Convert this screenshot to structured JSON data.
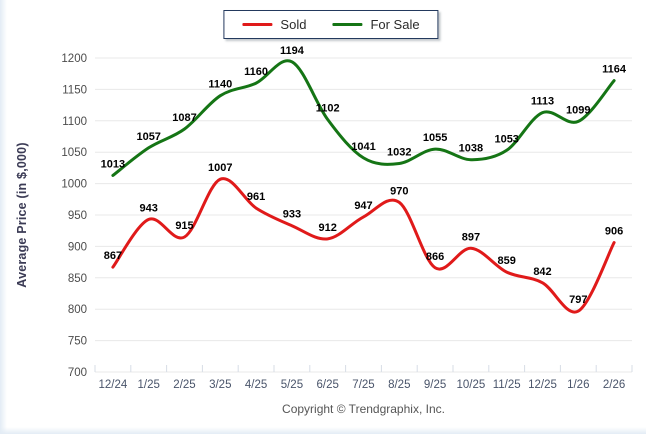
{
  "footer": {
    "copyright": "Copyright © Trendgraphix, Inc."
  },
  "chart_data": {
    "type": "line",
    "title": "",
    "xlabel": "",
    "ylabel": "Average Price (in $,000)",
    "ylim": [
      700,
      1200
    ],
    "ytick_step": 50,
    "grid": true,
    "legend_position": "top-center",
    "curve": "smooth",
    "categories": [
      "12/24",
      "1/25",
      "2/25",
      "3/25",
      "4/25",
      "5/25",
      "6/25",
      "7/25",
      "8/25",
      "9/25",
      "10/25",
      "11/25",
      "12/25",
      "1/26",
      "2/26"
    ],
    "series": [
      {
        "name": "Sold",
        "color": "#e01a1a",
        "values": [
          867,
          943,
          915,
          1007,
          961,
          933,
          912,
          947,
          970,
          866,
          897,
          859,
          842,
          797,
          906
        ]
      },
      {
        "name": "For Sale",
        "color": "#157515",
        "values": [
          1013,
          1057,
          1087,
          1140,
          1160,
          1194,
          1102,
          1041,
          1032,
          1055,
          1038,
          1053,
          1113,
          1099,
          1164
        ]
      }
    ],
    "colors": {
      "gridline": "#e8e8e8",
      "axis_tick": "#d7dde6",
      "ytick_label": "#4c4c4c",
      "xtick_label": "#49546a",
      "data_label": "#000000"
    }
  }
}
